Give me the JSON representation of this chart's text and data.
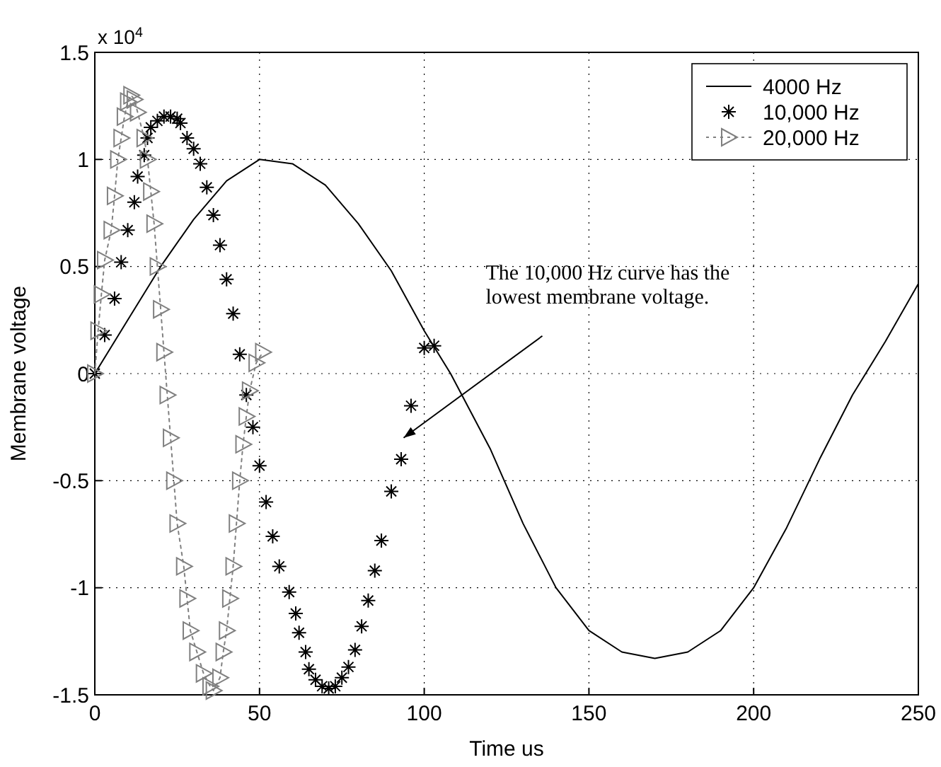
{
  "chart_data": {
    "type": "line",
    "xlabel": "Time us",
    "ylabel": "Membrane voltage",
    "xlim": [
      0,
      250
    ],
    "xticks": [
      0,
      50,
      100,
      150,
      200,
      250
    ],
    "ylim": [
      -1.5,
      1.5
    ],
    "yticks": [
      -1.5,
      -1,
      -0.5,
      0,
      0.5,
      1,
      1.5
    ],
    "grid": true,
    "legend": "top right",
    "annotations": [
      "x 10$^{4}$",
      "The 10,000 Hz curve has the lowest membrane voltage."
    ],
    "series": [
      {
        "name": "4000 Hz",
        "color": "#000000",
        "line_style": "solid",
        "marker": "none",
        "x": [
          0,
          10,
          20,
          30,
          40,
          50,
          60,
          70,
          80,
          90,
          100,
          108,
          120,
          130,
          140,
          150,
          160,
          170,
          180,
          190,
          200,
          210,
          220,
          230,
          240,
          250
        ],
        "values": [
          0,
          0.25,
          0.5,
          0.72,
          0.9,
          1.0,
          0.98,
          0.88,
          0.7,
          0.48,
          0.2,
          0,
          -0.35,
          -0.7,
          -1.0,
          -1.2,
          -1.3,
          -1.33,
          -1.3,
          -1.2,
          -1.0,
          -0.72,
          -0.4,
          -0.1,
          0.15,
          0.42
        ]
      },
      {
        "name": "10,000 Hz",
        "type": "scatter",
        "color": "#000000",
        "marker": "cross",
        "x": [
          0,
          3,
          6,
          8,
          10,
          12,
          13,
          15,
          16,
          17,
          19,
          21,
          23,
          25,
          26,
          28,
          30,
          32,
          34,
          36,
          38,
          40,
          42,
          44,
          46,
          48,
          50,
          52,
          54,
          56,
          59,
          61,
          62,
          64,
          65,
          67,
          69,
          71,
          73,
          75,
          77,
          79,
          81,
          83,
          85,
          87,
          90,
          93,
          96,
          100,
          103
        ],
        "values": [
          0,
          0.18,
          0.35,
          0.52,
          0.67,
          0.8,
          0.92,
          1.02,
          1.1,
          1.15,
          1.18,
          1.2,
          1.2,
          1.19,
          1.17,
          1.1,
          1.05,
          0.98,
          0.87,
          0.74,
          0.6,
          0.44,
          0.28,
          0.09,
          -0.1,
          -0.25,
          -0.43,
          -0.6,
          -0.76,
          -0.9,
          -1.02,
          -1.12,
          -1.21,
          -1.3,
          -1.38,
          -1.43,
          -1.46,
          -1.47,
          -1.46,
          -1.42,
          -1.37,
          -1.29,
          -1.18,
          -1.06,
          -0.92,
          -0.78,
          -0.55,
          -0.4,
          -0.15,
          0.12,
          0.13
        ]
      },
      {
        "name": "20,000 Hz",
        "color": "#808080",
        "line_style": "dotted",
        "marker": "triangle",
        "x": [
          0,
          1,
          2,
          3,
          5,
          6,
          7,
          8,
          9,
          10,
          11,
          12,
          13,
          15,
          16,
          17,
          18,
          19,
          20,
          21,
          22,
          23,
          24,
          25,
          27,
          28,
          29,
          31,
          33,
          35,
          36,
          38,
          39,
          40,
          41,
          42,
          43,
          44,
          45,
          46,
          47,
          49,
          51
        ],
        "values": [
          0,
          0.2,
          0.37,
          0.53,
          0.67,
          0.83,
          1.0,
          1.1,
          1.2,
          1.27,
          1.3,
          1.28,
          1.22,
          1.1,
          1.0,
          0.85,
          0.7,
          0.5,
          0.3,
          0.1,
          -0.1,
          -0.3,
          -0.5,
          -0.7,
          -0.9,
          -1.05,
          -1.2,
          -1.3,
          -1.4,
          -1.46,
          -1.48,
          -1.42,
          -1.3,
          -1.2,
          -1.05,
          -0.9,
          -0.7,
          -0.5,
          -0.33,
          -0.2,
          -0.08,
          0.05,
          0.1
        ]
      }
    ]
  }
}
